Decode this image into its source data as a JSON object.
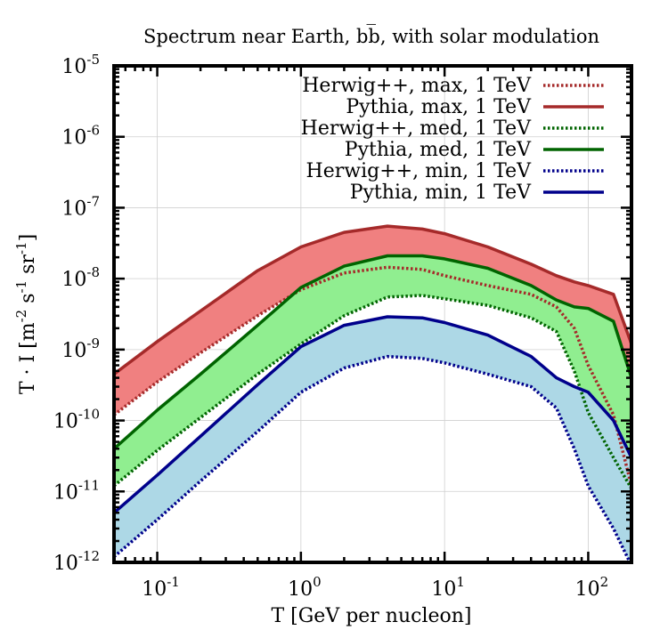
{
  "chart_data": {
    "type": "area",
    "title": "Spectrum near Earth, bb̅, with solar modulation",
    "xlabel": "T [GeV per nucleon]",
    "ylabel_parts": [
      "T · I [m",
      "-2",
      " s",
      "-1",
      " sr",
      "-1",
      "]"
    ],
    "xscale": "log",
    "yscale": "log",
    "xlim": [
      0.05,
      200
    ],
    "ylim": [
      1e-12,
      1e-05
    ],
    "x_ticks": [
      {
        "value": 0.1,
        "base": "10",
        "exp": "-1"
      },
      {
        "value": 1,
        "base": "10",
        "exp": "0"
      },
      {
        "value": 10,
        "base": "10",
        "exp": "1"
      },
      {
        "value": 100,
        "base": "10",
        "exp": "2"
      }
    ],
    "y_ticks": [
      {
        "value": 1e-12,
        "base": "10",
        "exp": "-12"
      },
      {
        "value": 1e-11,
        "base": "10",
        "exp": "-11"
      },
      {
        "value": 1e-10,
        "base": "10",
        "exp": "-10"
      },
      {
        "value": 1e-09,
        "base": "10",
        "exp": "-9"
      },
      {
        "value": 1e-08,
        "base": "10",
        "exp": "-8"
      },
      {
        "value": 1e-07,
        "base": "10",
        "exp": "-7"
      },
      {
        "value": 1e-06,
        "base": "10",
        "exp": "-6"
      },
      {
        "value": 1e-05,
        "base": "10",
        "exp": "-5"
      }
    ],
    "bands": [
      {
        "name": "max-band",
        "upper": "Pythia, max, 1 TeV",
        "lower": "Herwig++, max, 1 TeV",
        "fill": "#f08080"
      },
      {
        "name": "med-band",
        "upper": "Pythia, med, 1 TeV",
        "lower": "Herwig++, med, 1 TeV",
        "fill": "#90ee90"
      },
      {
        "name": "min-band",
        "upper": "Pythia, min, 1 TeV",
        "lower": "Herwig++, min, 1 TeV",
        "fill": "#add8e6"
      }
    ],
    "series": [
      {
        "name": "Herwig++, max, 1 TeV",
        "color": "#a52a2a",
        "dash": "dotted",
        "x": [
          0.05,
          0.1,
          0.2,
          0.5,
          1,
          2,
          4,
          7,
          10,
          20,
          40,
          60,
          80,
          100,
          150,
          200
        ],
        "y": [
          1.2e-10,
          3.5e-10,
          9e-10,
          3e-09,
          7e-09,
          1.2e-08,
          1.45e-08,
          1.35e-08,
          1.1e-08,
          8e-09,
          6e-09,
          4e-09,
          2e-09,
          6e-10,
          1.2e-10,
          1.2e-11
        ]
      },
      {
        "name": "Pythia, max, 1 TeV",
        "color": "#a52a2a",
        "dash": "solid",
        "x": [
          0.05,
          0.1,
          0.2,
          0.5,
          1,
          2,
          4,
          7,
          10,
          20,
          40,
          60,
          80,
          100,
          150,
          200
        ],
        "y": [
          4.5e-10,
          1.3e-09,
          3.5e-09,
          1.3e-08,
          2.8e-08,
          4.5e-08,
          5.5e-08,
          5e-08,
          4.3e-08,
          2.8e-08,
          1.6e-08,
          1.1e-08,
          9e-09,
          8e-09,
          6e-09,
          1.2e-09
        ]
      },
      {
        "name": "Herwig++, med, 1 TeV",
        "color": "#006400",
        "dash": "dotted",
        "x": [
          0.05,
          0.1,
          0.2,
          0.5,
          1,
          2,
          4,
          7,
          10,
          20,
          40,
          60,
          80,
          100,
          150,
          200
        ],
        "y": [
          1.2e-11,
          3.8e-11,
          1.1e-10,
          4.5e-10,
          1.2e-09,
          3e-09,
          5.5e-09,
          5.8e-09,
          5.2e-09,
          4.2e-09,
          2.8e-09,
          1.8e-09,
          5e-10,
          1.3e-10,
          3e-11,
          1.1e-11
        ]
      },
      {
        "name": "Pythia, med, 1 TeV",
        "color": "#006400",
        "dash": "solid",
        "x": [
          0.05,
          0.1,
          0.2,
          0.5,
          1,
          2,
          4,
          7,
          10,
          20,
          40,
          60,
          80,
          100,
          150,
          200
        ],
        "y": [
          4e-11,
          1.4e-10,
          4.5e-10,
          2.2e-09,
          7.5e-09,
          1.5e-08,
          2.1e-08,
          2.1e-08,
          1.9e-08,
          1.4e-08,
          8e-09,
          5e-09,
          4e-09,
          3.8e-09,
          2.5e-09,
          4e-10
        ]
      },
      {
        "name": "Herwig++, min, 1 TeV",
        "color": "#00008b",
        "dash": "dotted",
        "x": [
          0.05,
          0.1,
          0.2,
          0.5,
          1,
          2,
          4,
          7,
          10,
          20,
          40,
          60,
          80,
          100,
          150,
          200
        ],
        "y": [
          1.2e-12,
          4e-12,
          1.4e-11,
          7e-11,
          2.5e-10,
          5.5e-10,
          8e-10,
          7.5e-10,
          6.5e-10,
          4.5e-10,
          3e-10,
          1.5e-10,
          4e-11,
          1.2e-11,
          3e-12,
          9e-13
        ]
      },
      {
        "name": "Pythia, min, 1 TeV",
        "color": "#00008b",
        "dash": "solid",
        "x": [
          0.05,
          0.1,
          0.2,
          0.5,
          1,
          2,
          4,
          7,
          10,
          20,
          40,
          60,
          80,
          100,
          150,
          200
        ],
        "y": [
          5e-12,
          1.7e-11,
          6e-11,
          3.2e-10,
          1.1e-09,
          2.2e-09,
          2.9e-09,
          2.8e-09,
          2.4e-09,
          1.6e-09,
          8e-10,
          4e-10,
          3e-10,
          2.5e-10,
          1e-10,
          3e-11
        ]
      }
    ],
    "legend": {
      "position": "top-right",
      "entries": [
        {
          "label": "Herwig++, max, 1 TeV",
          "color": "#a52a2a",
          "dash": "dotted"
        },
        {
          "label": "Pythia, max, 1 TeV",
          "color": "#a52a2a",
          "dash": "solid"
        },
        {
          "label": "Herwig++, med, 1 TeV",
          "color": "#006400",
          "dash": "dotted"
        },
        {
          "label": "Pythia, med, 1 TeV",
          "color": "#006400",
          "dash": "solid"
        },
        {
          "label": "Herwig++, min, 1 TeV",
          "color": "#00008b",
          "dash": "dotted"
        },
        {
          "label": "Pythia, min, 1 TeV",
          "color": "#00008b",
          "dash": "solid"
        }
      ]
    },
    "grid": true
  }
}
